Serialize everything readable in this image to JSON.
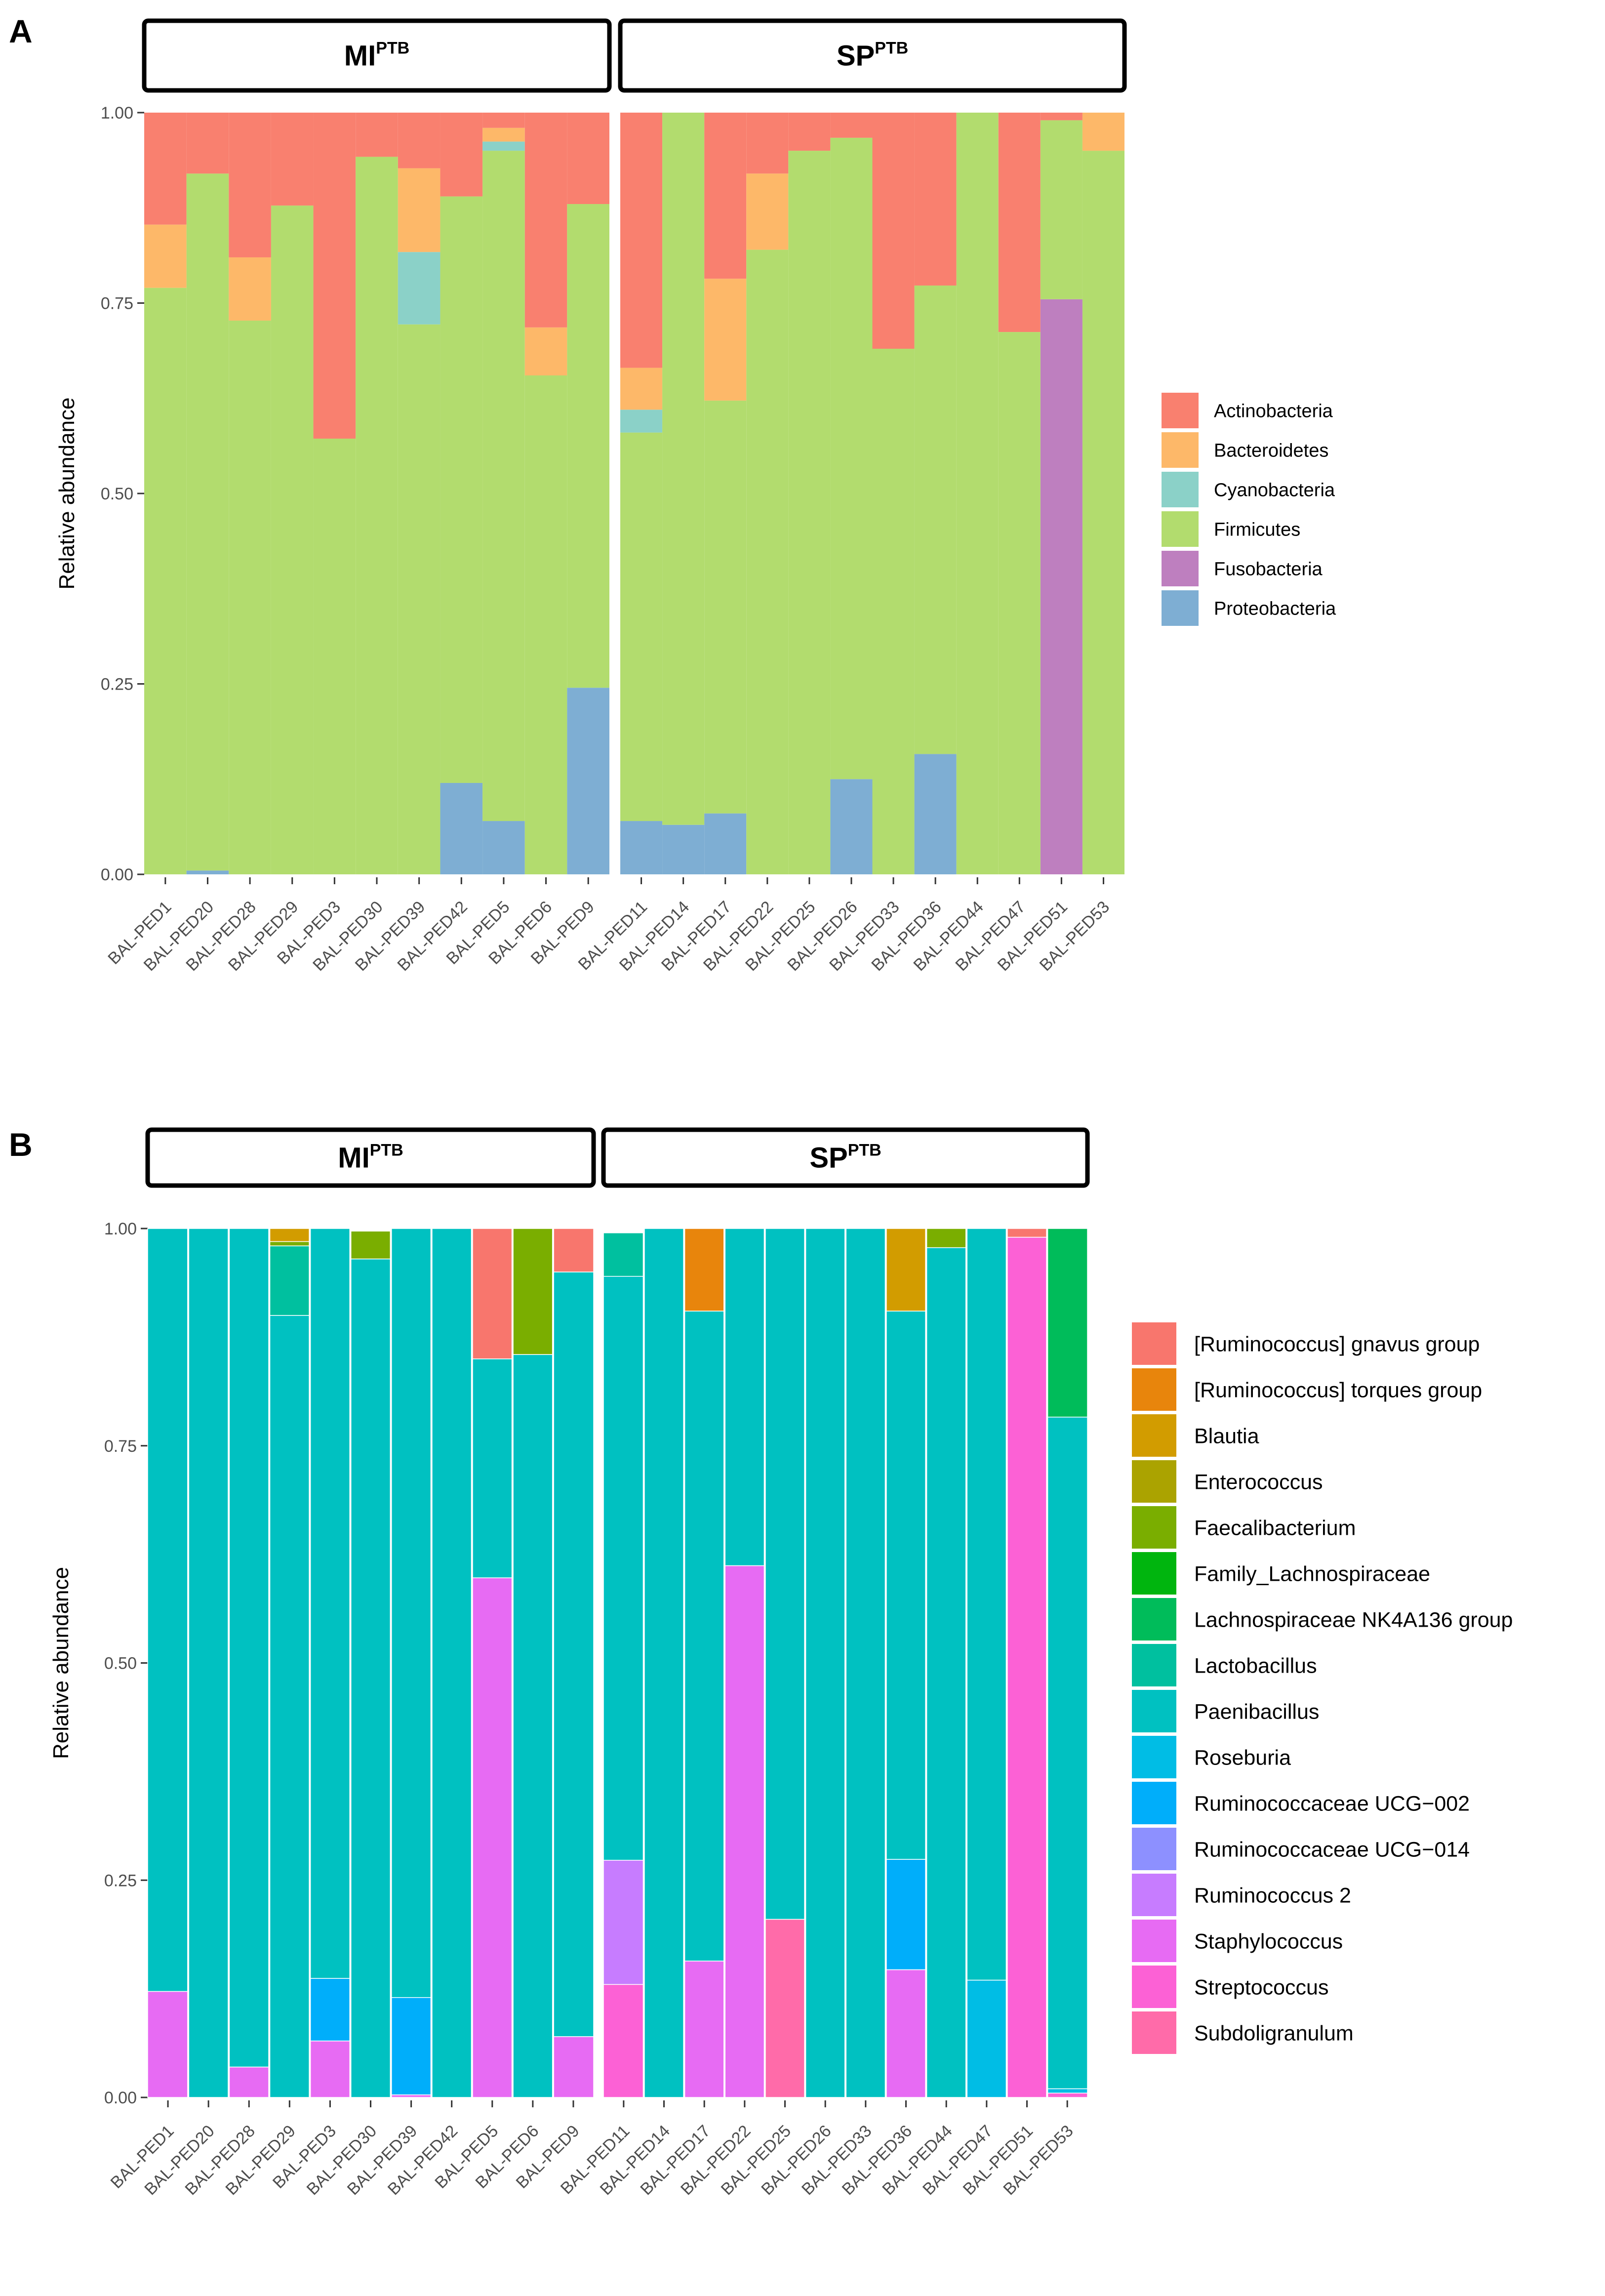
{
  "chart_data": [
    {
      "type": "bar",
      "panel": "A",
      "stacked": true,
      "ylabel": "Relative abundance",
      "ylim": [
        0,
        1
      ],
      "yticks": [
        "0.00",
        "0.25",
        "0.50",
        "0.75",
        "1.00"
      ],
      "legend_position": "right",
      "facets": [
        {
          "label": "MI",
          "sup": "PTB",
          "categories": [
            "BAL-PED1",
            "BAL-PED20",
            "BAL-PED28",
            "BAL-PED29",
            "BAL-PED3",
            "BAL-PED30",
            "BAL-PED39",
            "BAL-PED42",
            "BAL-PED5",
            "BAL-PED6",
            "BAL-PED9"
          ]
        },
        {
          "label": "SP",
          "sup": "PTB",
          "categories": [
            "BAL-PED11",
            "BAL-PED14",
            "BAL-PED17",
            "BAL-PED22",
            "BAL-PED25",
            "BAL-PED26",
            "BAL-PED33",
            "BAL-PED36",
            "BAL-PED44",
            "BAL-PED47",
            "BAL-PED51",
            "BAL-PED53"
          ]
        }
      ],
      "series": [
        {
          "name": "Proteobacteria",
          "color": "#7eaed3",
          "values": [
            0,
            0.005,
            0,
            0,
            0,
            0,
            0,
            0.12,
            0.07,
            0,
            0.245,
            0.07,
            0.065,
            0.08,
            0,
            0,
            0.125,
            0,
            0.158,
            0,
            0,
            0,
            0
          ]
        },
        {
          "name": "Fusobacteria",
          "color": "#be7fbf",
          "values": [
            0,
            0,
            0,
            0,
            0,
            0,
            0,
            0,
            0,
            0,
            0,
            0,
            0,
            0,
            0,
            0,
            0,
            0,
            0,
            0,
            0,
            0.755,
            0
          ]
        },
        {
          "name": "Firmicutes",
          "color": "#b2dc6e",
          "values": [
            0.77,
            0.915,
            0.727,
            0.878,
            0.572,
            0.942,
            0.722,
            0.77,
            0.88,
            0.655,
            0.635,
            0.51,
            0.935,
            0.542,
            0.82,
            0.95,
            0.842,
            0.69,
            0.615,
            1.0,
            0.712,
            0.235,
            0.95
          ]
        },
        {
          "name": "Cyanobacteria",
          "color": "#8bd1c8",
          "values": [
            0,
            0,
            0,
            0,
            0,
            0,
            0.095,
            0,
            0.012,
            0,
            0,
            0.03,
            0,
            0,
            0,
            0,
            0,
            0,
            0,
            0,
            0,
            0,
            0
          ]
        },
        {
          "name": "Bacteroidetes",
          "color": "#fdb869",
          "values": [
            0.083,
            0,
            0.083,
            0,
            0,
            0,
            0.11,
            0,
            0.018,
            0.063,
            0,
            0.055,
            0,
            0.16,
            0.1,
            0,
            0,
            0,
            0,
            0,
            0,
            0,
            0.05
          ]
        },
        {
          "name": "Actinobacteria",
          "color": "#f9806f",
          "values": [
            0.147,
            0.08,
            0.19,
            0.122,
            0.428,
            0.058,
            0.073,
            0.11,
            0.02,
            0.282,
            0.12,
            0.335,
            0,
            0.218,
            0.08,
            0.05,
            0.033,
            0.31,
            0.227,
            0,
            0.288,
            0.01,
            0
          ]
        }
      ]
    },
    {
      "type": "bar",
      "panel": "B",
      "stacked": true,
      "ylabel": "Relative abundance",
      "ylim": [
        0,
        1
      ],
      "yticks": [
        "0.00",
        "0.25",
        "0.50",
        "0.75",
        "1.00"
      ],
      "legend_position": "right",
      "facets": [
        {
          "label": "MI",
          "sup": "PTB",
          "categories": [
            "BAL-PED1",
            "BAL-PED20",
            "BAL-PED28",
            "BAL-PED29",
            "BAL-PED3",
            "BAL-PED30",
            "BAL-PED39",
            "BAL-PED42",
            "BAL-PED5",
            "BAL-PED6",
            "BAL-PED9"
          ]
        },
        {
          "label": "SP",
          "sup": "PTB",
          "categories": [
            "BAL-PED11",
            "BAL-PED14",
            "BAL-PED17",
            "BAL-PED22",
            "BAL-PED25",
            "BAL-PED26",
            "BAL-PED33",
            "BAL-PED36",
            "BAL-PED44",
            "BAL-PED47",
            "BAL-PED51",
            "BAL-PED53"
          ]
        }
      ],
      "series": [
        {
          "name": "Subdoligranulum",
          "color": "#ff6ba9",
          "values": [
            0,
            0,
            0,
            0,
            0,
            0,
            0,
            0,
            0,
            0,
            0,
            0,
            0,
            0,
            0,
            0.205,
            0,
            0,
            0,
            0,
            0,
            0,
            0
          ]
        },
        {
          "name": "Streptococcus",
          "color": "#fc61d5",
          "values": [
            0,
            0,
            0,
            0,
            0,
            0,
            0,
            0,
            0,
            0,
            0,
            0.13,
            0,
            0,
            0,
            0,
            0,
            0,
            0,
            0,
            0,
            0.99,
            0.005
          ]
        },
        {
          "name": "Staphylococcus",
          "color": "#e76bf3",
          "values": [
            0.122,
            0,
            0.035,
            0,
            0.065,
            0,
            0.003,
            0,
            0.598,
            0,
            0.07,
            0,
            0,
            0.157,
            0.612,
            0,
            0,
            0,
            0.147,
            0,
            0,
            0,
            0
          ]
        },
        {
          "name": "Ruminococcus 2",
          "color": "#c77cff",
          "values": [
            0,
            0,
            0,
            0,
            0,
            0,
            0,
            0,
            0,
            0,
            0,
            0.143,
            0,
            0,
            0,
            0,
            0,
            0,
            0,
            0,
            0,
            0,
            0
          ]
        },
        {
          "name": "Ruminococcaceae UCG−014",
          "color": "#8d90ff",
          "values": [
            0,
            0,
            0,
            0,
            0,
            0,
            0,
            0,
            0,
            0,
            0,
            0,
            0,
            0,
            0,
            0,
            0,
            0,
            0,
            0,
            0,
            0,
            0
          ]
        },
        {
          "name": "Ruminococcaceae UCG−002",
          "color": "#00aefa",
          "values": [
            0,
            0,
            0,
            0,
            0.072,
            0,
            0.112,
            0,
            0,
            0,
            0,
            0,
            0,
            0,
            0,
            0,
            0,
            0,
            0.127,
            0,
            0,
            0,
            0
          ]
        },
        {
          "name": "Roseburia",
          "color": "#00bde5",
          "values": [
            0,
            0,
            0,
            0,
            0,
            0,
            0,
            0,
            0,
            0,
            0,
            0,
            0,
            0,
            0,
            0,
            0,
            0,
            0,
            0,
            0.135,
            0,
            0.005
          ]
        },
        {
          "name": "Paenibacillus",
          "color": "#00c1c1",
          "values": [
            0.878,
            1.0,
            0.965,
            0.9,
            0.863,
            0.965,
            0.885,
            1.0,
            0.252,
            0.855,
            0.88,
            0.672,
            1.0,
            0.748,
            0.388,
            0.795,
            1.0,
            1.0,
            0.631,
            0.978,
            0.865,
            0,
            0.773
          ]
        },
        {
          "name": "Lactobacillus",
          "color": "#00c09f",
          "values": [
            0,
            0,
            0,
            0.08,
            0,
            0,
            0,
            0,
            0,
            0,
            0,
            0.05,
            0,
            0,
            0,
            0,
            0,
            0,
            0,
            0,
            0,
            0,
            0
          ]
        },
        {
          "name": "Lachnospiraceae NK4A136 group",
          "color": "#00bc5a",
          "values": [
            0,
            0,
            0,
            0,
            0,
            0,
            0,
            0,
            0,
            0,
            0,
            0,
            0,
            0,
            0,
            0,
            0,
            0,
            0,
            0,
            0,
            0,
            0.217
          ]
        },
        {
          "name": "Family_Lachnospiraceae",
          "color": "#00b50e",
          "values": [
            0,
            0,
            0,
            0,
            0,
            0,
            0,
            0,
            0,
            0,
            0,
            0,
            0,
            0,
            0,
            0,
            0,
            0,
            0,
            0,
            0,
            0,
            0
          ]
        },
        {
          "name": "Faecalibacterium",
          "color": "#7aae00",
          "values": [
            0,
            0,
            0,
            0.005,
            0,
            0.032,
            0,
            0,
            0,
            0.145,
            0,
            0,
            0,
            0,
            0,
            0,
            0,
            0,
            0,
            0.022,
            0,
            0,
            0
          ]
        },
        {
          "name": "Enterococcus",
          "color": "#aba300",
          "values": [
            0,
            0,
            0,
            0,
            0,
            0,
            0,
            0,
            0,
            0,
            0,
            0,
            0,
            0,
            0,
            0,
            0,
            0,
            0,
            0,
            0,
            0,
            0
          ]
        },
        {
          "name": "Blautia",
          "color": "#d29c00",
          "values": [
            0,
            0,
            0,
            0.015,
            0,
            0,
            0,
            0,
            0,
            0,
            0,
            0,
            0,
            0,
            0,
            0,
            0,
            0,
            0.095,
            0,
            0,
            0,
            0
          ]
        },
        {
          "name": "[Ruminococcus] torques group",
          "color": "#e8850c",
          "values": [
            0,
            0,
            0,
            0,
            0,
            0,
            0,
            0,
            0,
            0,
            0,
            0,
            0,
            0.095,
            0,
            0,
            0,
            0,
            0,
            0,
            0,
            0,
            0
          ]
        },
        {
          "name": "[Ruminococcus] gnavus group",
          "color": "#f8766d",
          "values": [
            0,
            0,
            0,
            0,
            0,
            0,
            0,
            0,
            0.15,
            0,
            0.05,
            0,
            0,
            0,
            0,
            0,
            0,
            0,
            0,
            0,
            0,
            0.01,
            0
          ]
        }
      ]
    }
  ]
}
